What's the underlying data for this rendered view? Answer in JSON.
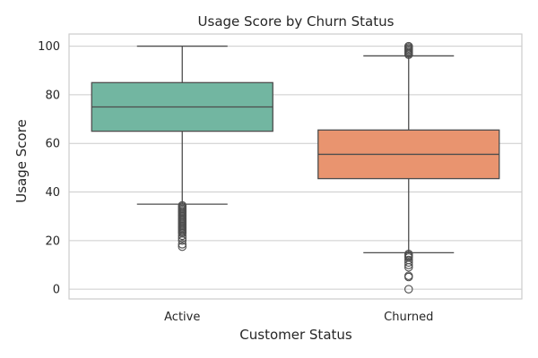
{
  "chart_data": {
    "type": "box",
    "title": "Usage Score by Churn Status",
    "xlabel": "Customer Status",
    "ylabel": "Usage Score",
    "ylim": [
      -4,
      105
    ],
    "yticks": [
      0,
      20,
      40,
      60,
      80,
      100
    ],
    "grid": true,
    "categories": [
      "Active",
      "Churned"
    ],
    "series": [
      {
        "category": "Active",
        "color": "#72b6a1",
        "whisker_low": 35,
        "q1": 65,
        "median": 75,
        "q3": 85,
        "whisker_high": 100,
        "outliers": [
          34.5,
          34,
          33.5,
          33,
          32.5,
          32,
          31.5,
          31,
          30.5,
          30,
          29.5,
          29,
          28.5,
          28,
          27.5,
          27,
          26.5,
          26,
          25.5,
          25,
          24.5,
          24,
          23.5,
          23,
          22,
          21,
          20,
          18.5,
          17.5
        ]
      },
      {
        "category": "Churned",
        "color": "#e9946f",
        "whisker_low": 15,
        "q1": 45.5,
        "median": 55.5,
        "q3": 65.5,
        "whisker_high": 96,
        "outliers": [
          100,
          99.5,
          99,
          98.5,
          98,
          97.5,
          97,
          96.5,
          14.5,
          14,
          13.5,
          13,
          12,
          11,
          10,
          9,
          5.5,
          5,
          0
        ]
      }
    ]
  }
}
